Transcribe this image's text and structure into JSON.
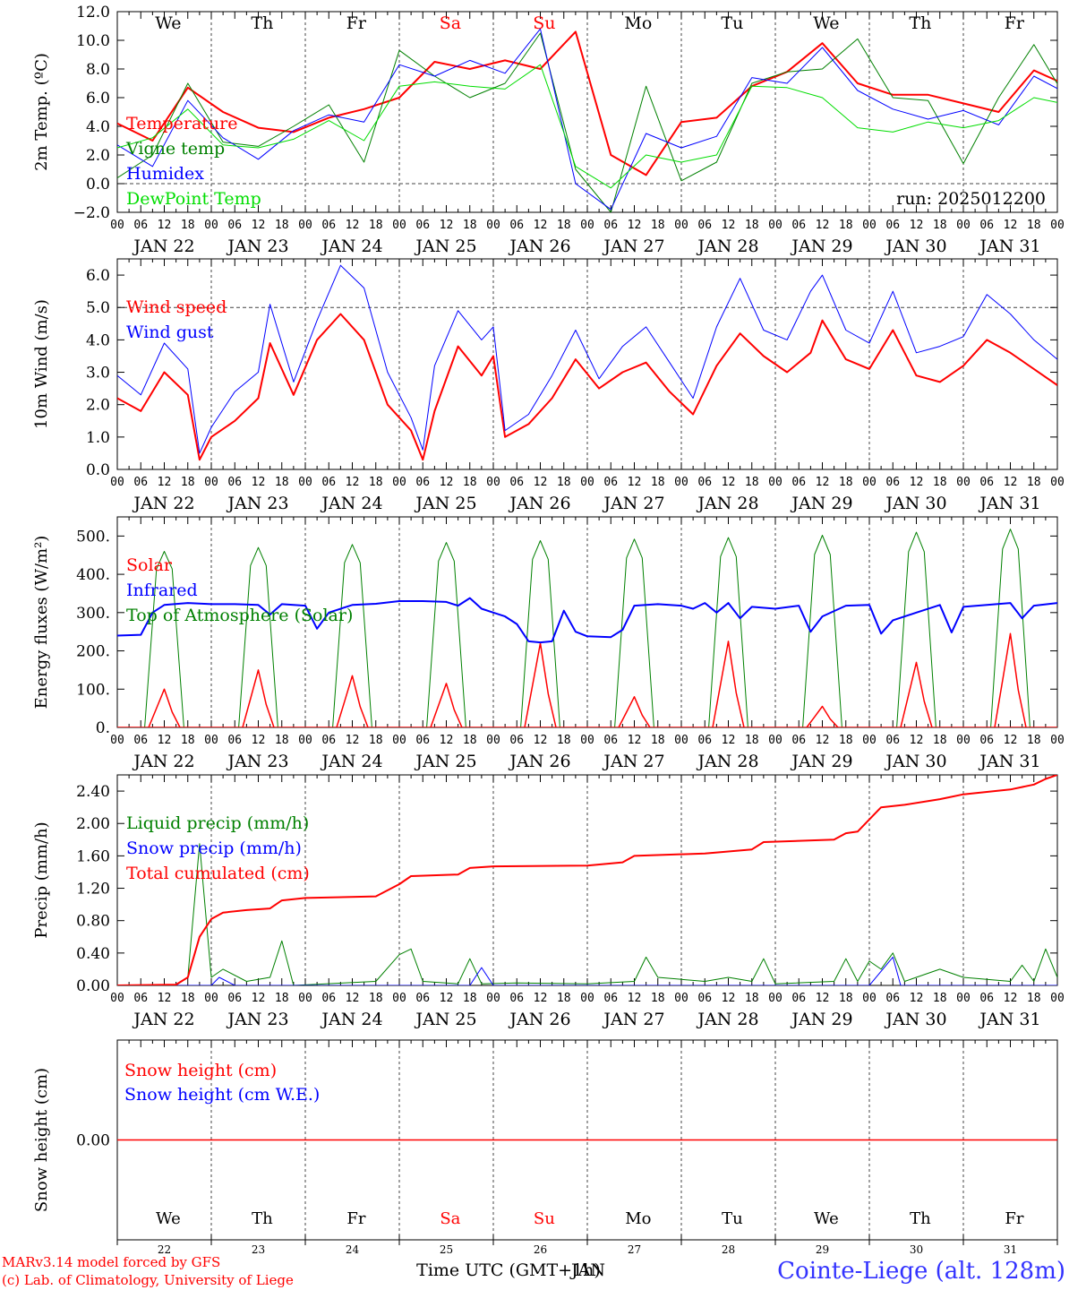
{
  "days": [
    "JAN 22",
    "JAN 23",
    "JAN 24",
    "JAN 25",
    "JAN 26",
    "JAN 27",
    "JAN 28",
    "JAN 29",
    "JAN 30",
    "JAN 31"
  ],
  "hours": [
    "00",
    "06",
    "12",
    "18"
  ],
  "weekdays": [
    {
      "label": "We",
      "color": "#000000"
    },
    {
      "label": "Th",
      "color": "#000000"
    },
    {
      "label": "Fr",
      "color": "#000000"
    },
    {
      "label": "Sa",
      "color": "#ff0000"
    },
    {
      "label": "Su",
      "color": "#ff0000"
    },
    {
      "label": "Mo",
      "color": "#000000"
    },
    {
      "label": "Tu",
      "color": "#000000"
    },
    {
      "label": "We",
      "color": "#000000"
    },
    {
      "label": "Th",
      "color": "#000000"
    },
    {
      "label": "Fr",
      "color": "#000000"
    }
  ],
  "daynums": [
    "22",
    "23",
    "24",
    "25",
    "26",
    "27",
    "28",
    "29",
    "30",
    "31"
  ],
  "footer": {
    "model": "MARv3.14 model forced by GFS",
    "copyright": "(c) Lab. of Climatology, University of Liege",
    "xlabel": "Time UTC (GMT+1h)",
    "xlabel_overlap": "JAN",
    "station": "Cointe-Liege (alt. 128m)"
  },
  "chart_data": [
    {
      "type": "line",
      "ylabel": "2m Temp. (ºC)",
      "ylim": [
        -2,
        12
      ],
      "yticks": [
        "12.0",
        "10.0",
        "8.0",
        "6.0",
        "4.0",
        "2.0",
        "0.0",
        "−2.0"
      ],
      "ytick_values": [
        12,
        10,
        8,
        6,
        4,
        2,
        0,
        -2
      ],
      "dashed_y": 0,
      "run_label": "run: 2025012200",
      "x_hours": [
        0,
        9,
        18,
        27,
        36,
        45,
        54,
        63,
        72,
        81,
        90,
        99,
        108,
        117,
        126,
        135,
        144,
        153,
        162,
        171,
        180,
        189,
        198,
        207,
        216,
        225,
        234,
        243
      ],
      "series": [
        {
          "name": "Temperature",
          "color": "#ff0000",
          "width": 2,
          "values": [
            4.2,
            3.0,
            6.7,
            5.0,
            3.9,
            3.6,
            4.6,
            5.2,
            6.0,
            8.5,
            8.0,
            8.6,
            8.0,
            10.6,
            2.0,
            0.6,
            4.3,
            4.6,
            6.8,
            7.8,
            9.8,
            7.0,
            6.2,
            6.2,
            5.6,
            5.0,
            7.9,
            6.8
          ]
        },
        {
          "name": "Vigne temp",
          "color": "#008000",
          "width": 1,
          "values": [
            0.4,
            2.0,
            7.0,
            2.9,
            2.6,
            4.0,
            5.5,
            1.5,
            9.3,
            7.5,
            6.0,
            7.0,
            10.5,
            1.0,
            -2.0,
            6.8,
            0.2,
            1.5,
            7.0,
            7.8,
            8.0,
            10.1,
            6.0,
            5.8,
            1.4,
            6.0,
            9.7,
            5.6
          ]
        },
        {
          "name": "Humidex",
          "color": "#0000ff",
          "width": 1,
          "values": [
            2.7,
            1.2,
            5.8,
            3.2,
            1.7,
            3.7,
            4.8,
            4.3,
            8.3,
            7.5,
            8.6,
            7.7,
            10.8,
            0.0,
            -1.8,
            3.5,
            2.5,
            3.3,
            7.4,
            7.0,
            9.5,
            6.5,
            5.2,
            4.5,
            5.1,
            4.1,
            7.5,
            6.2
          ]
        },
        {
          "name": "DewPoint Temp",
          "color": "#00dd00",
          "width": 1,
          "values": [
            2.5,
            3.2,
            5.2,
            2.7,
            2.5,
            3.1,
            4.4,
            3.0,
            6.8,
            7.1,
            6.8,
            6.6,
            8.3,
            1.2,
            -0.3,
            2.0,
            1.5,
            2.0,
            6.8,
            6.7,
            6.0,
            3.9,
            3.6,
            4.3,
            3.9,
            4.4,
            6.0,
            5.5
          ]
        }
      ]
    },
    {
      "type": "line",
      "ylabel": "10m Wind (m/s)",
      "ylim": [
        0,
        6.5
      ],
      "yticks": [
        "6.0",
        "5.0",
        "4.0",
        "3.0",
        "2.0",
        "1.0",
        "0.0"
      ],
      "ytick_values": [
        6,
        5,
        4,
        3,
        2,
        1,
        0
      ],
      "dashed_y": 5,
      "x_hours": [
        0,
        6,
        12,
        18,
        21,
        24,
        30,
        36,
        39,
        45,
        51,
        57,
        63,
        69,
        75,
        78,
        81,
        87,
        93,
        96,
        99,
        105,
        111,
        117,
        123,
        129,
        135,
        141,
        147,
        153,
        159,
        165,
        171,
        177,
        180,
        186,
        192,
        198,
        204,
        210,
        216,
        222,
        228,
        234,
        240
      ],
      "series": [
        {
          "name": "Wind speed",
          "color": "#ff0000",
          "width": 2,
          "values": [
            2.2,
            1.8,
            3.0,
            2.3,
            0.3,
            1.0,
            1.5,
            2.2,
            3.9,
            2.3,
            4.0,
            4.8,
            4.0,
            2.0,
            1.2,
            0.3,
            1.8,
            3.8,
            2.9,
            3.5,
            1.0,
            1.4,
            2.2,
            3.4,
            2.5,
            3.0,
            3.3,
            2.4,
            1.7,
            3.2,
            4.2,
            3.5,
            3.0,
            3.6,
            4.6,
            3.4,
            3.1,
            4.3,
            2.9,
            2.7,
            3.2,
            4.0,
            3.6,
            3.1,
            2.6
          ]
        },
        {
          "name": "Wind gust",
          "color": "#0000ff",
          "width": 1,
          "values": [
            2.9,
            2.3,
            3.9,
            3.1,
            0.5,
            1.3,
            2.4,
            3.0,
            5.1,
            2.7,
            4.6,
            6.3,
            5.6,
            3.0,
            1.6,
            0.6,
            3.2,
            4.9,
            4.0,
            4.4,
            1.2,
            1.7,
            2.9,
            4.3,
            2.8,
            3.8,
            4.4,
            3.3,
            2.2,
            4.4,
            5.9,
            4.3,
            4.0,
            5.5,
            6.0,
            4.3,
            3.9,
            5.5,
            3.6,
            3.8,
            4.1,
            5.4,
            4.8,
            4.0,
            3.4
          ]
        }
      ]
    },
    {
      "type": "line",
      "ylabel": "Energy fluxes (W/m²)",
      "ylim": [
        0,
        550
      ],
      "yticks": [
        "500.",
        "400.",
        "300.",
        "200.",
        "100.",
        "0."
      ],
      "ytick_values": [
        500,
        400,
        300,
        200,
        100,
        0
      ],
      "solar_peaks": [
        100,
        150,
        135,
        115,
        220,
        80,
        225,
        55,
        170,
        245
      ],
      "toa_peaks": [
        460,
        470,
        478,
        483,
        488,
        492,
        496,
        502,
        510,
        518
      ],
      "infrared": [
        {
          "x": 0,
          "y": 240
        },
        {
          "x": 6,
          "y": 242
        },
        {
          "x": 9,
          "y": 300
        },
        {
          "x": 12,
          "y": 320
        },
        {
          "x": 18,
          "y": 325
        },
        {
          "x": 24,
          "y": 322
        },
        {
          "x": 30,
          "y": 322
        },
        {
          "x": 36,
          "y": 320
        },
        {
          "x": 39,
          "y": 295
        },
        {
          "x": 42,
          "y": 322
        },
        {
          "x": 48,
          "y": 318
        },
        {
          "x": 51,
          "y": 258
        },
        {
          "x": 54,
          "y": 300
        },
        {
          "x": 60,
          "y": 320
        },
        {
          "x": 66,
          "y": 323
        },
        {
          "x": 72,
          "y": 330
        },
        {
          "x": 78,
          "y": 330
        },
        {
          "x": 84,
          "y": 328
        },
        {
          "x": 87,
          "y": 318
        },
        {
          "x": 90,
          "y": 338
        },
        {
          "x": 93,
          "y": 310
        },
        {
          "x": 96,
          "y": 300
        },
        {
          "x": 99,
          "y": 290
        },
        {
          "x": 102,
          "y": 270
        },
        {
          "x": 105,
          "y": 225
        },
        {
          "x": 108,
          "y": 222
        },
        {
          "x": 111,
          "y": 225
        },
        {
          "x": 114,
          "y": 305
        },
        {
          "x": 117,
          "y": 250
        },
        {
          "x": 120,
          "y": 238
        },
        {
          "x": 126,
          "y": 236
        },
        {
          "x": 129,
          "y": 255
        },
        {
          "x": 132,
          "y": 318
        },
        {
          "x": 138,
          "y": 322
        },
        {
          "x": 144,
          "y": 318
        },
        {
          "x": 147,
          "y": 310
        },
        {
          "x": 150,
          "y": 325
        },
        {
          "x": 153,
          "y": 300
        },
        {
          "x": 156,
          "y": 325
        },
        {
          "x": 159,
          "y": 285
        },
        {
          "x": 162,
          "y": 315
        },
        {
          "x": 168,
          "y": 310
        },
        {
          "x": 174,
          "y": 318
        },
        {
          "x": 177,
          "y": 250
        },
        {
          "x": 180,
          "y": 290
        },
        {
          "x": 186,
          "y": 318
        },
        {
          "x": 192,
          "y": 320
        },
        {
          "x": 195,
          "y": 245
        },
        {
          "x": 198,
          "y": 280
        },
        {
          "x": 204,
          "y": 300
        },
        {
          "x": 210,
          "y": 320
        },
        {
          "x": 213,
          "y": 248
        },
        {
          "x": 216,
          "y": 315
        },
        {
          "x": 222,
          "y": 320
        },
        {
          "x": 228,
          "y": 325
        },
        {
          "x": 231,
          "y": 285
        },
        {
          "x": 234,
          "y": 318
        },
        {
          "x": 240,
          "y": 325
        }
      ],
      "series": [
        {
          "name": "Solar",
          "color": "#ff0000",
          "width": 1.5
        },
        {
          "name": "Infrared",
          "color": "#0000ff",
          "width": 2
        },
        {
          "name": "Top of Atmosphere (Solar)",
          "color": "#008000",
          "width": 1
        }
      ]
    },
    {
      "type": "line",
      "ylabel": "Precip (mm/h)",
      "ylim": [
        0,
        2.6
      ],
      "yticks": [
        "2.40",
        "2.00",
        "1.60",
        "1.20",
        "0.80",
        "0.40",
        "0.00"
      ],
      "ytick_values": [
        2.4,
        2.0,
        1.6,
        1.2,
        0.8,
        0.4,
        0
      ],
      "liquid": [
        {
          "x": 0,
          "y": 0
        },
        {
          "x": 15,
          "y": 0
        },
        {
          "x": 18,
          "y": 0.1
        },
        {
          "x": 21,
          "y": 1.75
        },
        {
          "x": 24,
          "y": 0.1
        },
        {
          "x": 27,
          "y": 0.2
        },
        {
          "x": 33,
          "y": 0.05
        },
        {
          "x": 39,
          "y": 0.1
        },
        {
          "x": 42,
          "y": 0.55
        },
        {
          "x": 45,
          "y": 0
        },
        {
          "x": 66,
          "y": 0.05
        },
        {
          "x": 72,
          "y": 0.38
        },
        {
          "x": 75,
          "y": 0.45
        },
        {
          "x": 78,
          "y": 0.05
        },
        {
          "x": 87,
          "y": 0.02
        },
        {
          "x": 90,
          "y": 0.33
        },
        {
          "x": 93,
          "y": 0.02
        },
        {
          "x": 102,
          "y": 0.03
        },
        {
          "x": 120,
          "y": 0.02
        },
        {
          "x": 132,
          "y": 0.05
        },
        {
          "x": 135,
          "y": 0.35
        },
        {
          "x": 138,
          "y": 0.1
        },
        {
          "x": 150,
          "y": 0.05
        },
        {
          "x": 156,
          "y": 0.1
        },
        {
          "x": 162,
          "y": 0.05
        },
        {
          "x": 165,
          "y": 0.33
        },
        {
          "x": 168,
          "y": 0.02
        },
        {
          "x": 183,
          "y": 0.05
        },
        {
          "x": 186,
          "y": 0.33
        },
        {
          "x": 189,
          "y": 0.05
        },
        {
          "x": 192,
          "y": 0.3
        },
        {
          "x": 195,
          "y": 0.2
        },
        {
          "x": 198,
          "y": 0.4
        },
        {
          "x": 201,
          "y": 0.05
        },
        {
          "x": 210,
          "y": 0.2
        },
        {
          "x": 216,
          "y": 0.1
        },
        {
          "x": 228,
          "y": 0.05
        },
        {
          "x": 231,
          "y": 0.25
        },
        {
          "x": 234,
          "y": 0.05
        },
        {
          "x": 237,
          "y": 0.45
        },
        {
          "x": 240,
          "y": 0.1
        }
      ],
      "snow": [
        {
          "x": 0,
          "y": 0
        },
        {
          "x": 24,
          "y": 0
        },
        {
          "x": 26,
          "y": 0.1
        },
        {
          "x": 30,
          "y": 0
        },
        {
          "x": 90,
          "y": 0
        },
        {
          "x": 93,
          "y": 0.22
        },
        {
          "x": 96,
          "y": 0
        },
        {
          "x": 192,
          "y": 0
        },
        {
          "x": 198,
          "y": 0.35
        },
        {
          "x": 200,
          "y": 0
        },
        {
          "x": 240,
          "y": 0
        }
      ],
      "cumulated": [
        {
          "x": 0,
          "y": 0
        },
        {
          "x": 15,
          "y": 0.01
        },
        {
          "x": 18,
          "y": 0.1
        },
        {
          "x": 21,
          "y": 0.6
        },
        {
          "x": 24,
          "y": 0.82
        },
        {
          "x": 27,
          "y": 0.9
        },
        {
          "x": 33,
          "y": 0.93
        },
        {
          "x": 39,
          "y": 0.95
        },
        {
          "x": 42,
          "y": 1.05
        },
        {
          "x": 48,
          "y": 1.08
        },
        {
          "x": 66,
          "y": 1.1
        },
        {
          "x": 72,
          "y": 1.25
        },
        {
          "x": 75,
          "y": 1.35
        },
        {
          "x": 87,
          "y": 1.37
        },
        {
          "x": 90,
          "y": 1.45
        },
        {
          "x": 96,
          "y": 1.47
        },
        {
          "x": 120,
          "y": 1.48
        },
        {
          "x": 129,
          "y": 1.52
        },
        {
          "x": 132,
          "y": 1.6
        },
        {
          "x": 150,
          "y": 1.63
        },
        {
          "x": 162,
          "y": 1.68
        },
        {
          "x": 165,
          "y": 1.77
        },
        {
          "x": 183,
          "y": 1.8
        },
        {
          "x": 186,
          "y": 1.88
        },
        {
          "x": 189,
          "y": 1.9
        },
        {
          "x": 192,
          "y": 2.05
        },
        {
          "x": 195,
          "y": 2.2
        },
        {
          "x": 201,
          "y": 2.23
        },
        {
          "x": 210,
          "y": 2.3
        },
        {
          "x": 216,
          "y": 2.36
        },
        {
          "x": 228,
          "y": 2.42
        },
        {
          "x": 234,
          "y": 2.48
        },
        {
          "x": 237,
          "y": 2.55
        },
        {
          "x": 240,
          "y": 2.6
        }
      ],
      "series": [
        {
          "name": "Liquid precip (mm/h)",
          "color": "#008000",
          "width": 1
        },
        {
          "name": "Snow precip (mm/h)",
          "color": "#0000ff",
          "width": 1
        },
        {
          "name": "Total cumulated (cm)",
          "color": "#ff0000",
          "width": 2
        }
      ]
    },
    {
      "type": "line",
      "ylabel": "Snow height (cm)",
      "ylim": [
        -1,
        1
      ],
      "yticks": [
        "0.00"
      ],
      "ytick_values": [
        0
      ],
      "series": [
        {
          "name": "Snow height (cm)",
          "color": "#ff0000",
          "width": 1.5,
          "values": [
            0,
            0
          ]
        },
        {
          "name": "Snow height (cm W.E.)",
          "color": "#0000ff",
          "width": 1
        }
      ]
    }
  ]
}
